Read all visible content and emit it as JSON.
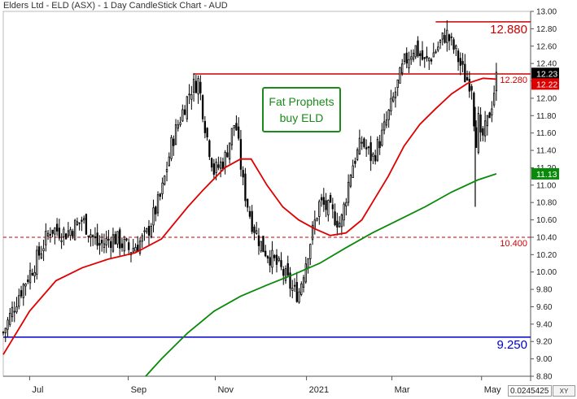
{
  "header": {
    "title": "Elders Ltd - ELD (ASX) - 1 Day CandleStick Chart - AUD"
  },
  "annotation": {
    "line1": "Fat Prophets",
    "line2": "buy ELD"
  },
  "crosshair": {
    "x_value": "0.0245425",
    "xy_label": "XY"
  },
  "colors": {
    "candle": "#000000",
    "ma_short": "#e00000",
    "ma_long": "#0a8a0a",
    "support": "#0000cc",
    "resistance": "#cc0000",
    "annotation": "#1a8a1a"
  },
  "chart_data": {
    "type": "candlestick",
    "title": "Elders Ltd - ELD (ASX) - 1 Day CandleStick Chart - AUD",
    "ylim": [
      8.8,
      13.0
    ],
    "y_ticks": [
      "13.00",
      "12.80",
      "12.60",
      "12.40",
      "12.20",
      "12.00",
      "11.80",
      "11.60",
      "11.40",
      "11.20",
      "11.00",
      "10.80",
      "10.60",
      "10.40",
      "10.20",
      "10.00",
      "9.80",
      "9.60",
      "9.40",
      "9.20",
      "9.00",
      "8.80"
    ],
    "x_ticks": [
      {
        "label": "Jul",
        "t": 0.05
      },
      {
        "label": "Sep",
        "t": 0.237
      },
      {
        "label": "Nov",
        "t": 0.402
      },
      {
        "label": "2021",
        "t": 0.575
      },
      {
        "label": "Mar",
        "t": 0.737
      },
      {
        "label": "May",
        "t": 0.907
      }
    ],
    "close_path": [
      [
        0,
        9.3
      ],
      [
        0.03,
        9.75
      ],
      [
        0.06,
        10.1
      ],
      [
        0.09,
        10.5
      ],
      [
        0.12,
        10.45
      ],
      [
        0.15,
        10.6
      ],
      [
        0.18,
        10.3
      ],
      [
        0.21,
        10.4
      ],
      [
        0.24,
        10.25
      ],
      [
        0.27,
        10.4
      ],
      [
        0.3,
        10.9
      ],
      [
        0.32,
        11.5
      ],
      [
        0.34,
        11.85
      ],
      [
        0.355,
        12.1
      ],
      [
        0.37,
        12.2
      ],
      [
        0.385,
        11.6
      ],
      [
        0.4,
        11.15
      ],
      [
        0.42,
        11.3
      ],
      [
        0.44,
        11.75
      ],
      [
        0.455,
        11.0
      ],
      [
        0.47,
        10.6
      ],
      [
        0.49,
        10.3
      ],
      [
        0.51,
        10.15
      ],
      [
        0.53,
        10.0
      ],
      [
        0.55,
        9.78
      ],
      [
        0.56,
        9.75
      ],
      [
        0.58,
        10.3
      ],
      [
        0.6,
        10.8
      ],
      [
        0.62,
        10.7
      ],
      [
        0.64,
        10.55
      ],
      [
        0.66,
        11.2
      ],
      [
        0.68,
        11.5
      ],
      [
        0.7,
        11.3
      ],
      [
        0.72,
        11.6
      ],
      [
        0.74,
        12.0
      ],
      [
        0.76,
        12.4
      ],
      [
        0.78,
        12.6
      ],
      [
        0.8,
        12.4
      ],
      [
        0.82,
        12.55
      ],
      [
        0.84,
        12.75
      ],
      [
        0.86,
        12.5
      ],
      [
        0.875,
        12.25
      ],
      [
        0.89,
        12.15
      ],
      [
        0.895,
        11.4
      ],
      [
        0.9,
        11.8
      ],
      [
        0.905,
        11.5
      ],
      [
        0.915,
        11.65
      ],
      [
        0.925,
        11.9
      ],
      [
        0.935,
        12.23
      ]
    ],
    "ma_short": {
      "name": "",
      "color": "#e00000",
      "points": [
        [
          0,
          9.05
        ],
        [
          0.05,
          9.55
        ],
        [
          0.1,
          9.9
        ],
        [
          0.15,
          10.05
        ],
        [
          0.2,
          10.15
        ],
        [
          0.25,
          10.22
        ],
        [
          0.3,
          10.38
        ],
        [
          0.35,
          10.75
        ],
        [
          0.38,
          10.95
        ],
        [
          0.42,
          11.2
        ],
        [
          0.45,
          11.3
        ],
        [
          0.47,
          11.3
        ],
        [
          0.5,
          11.0
        ],
        [
          0.53,
          10.75
        ],
        [
          0.56,
          10.6
        ],
        [
          0.59,
          10.5
        ],
        [
          0.62,
          10.42
        ],
        [
          0.65,
          10.45
        ],
        [
          0.68,
          10.6
        ],
        [
          0.7,
          10.8
        ],
        [
          0.73,
          11.1
        ],
        [
          0.76,
          11.45
        ],
        [
          0.79,
          11.7
        ],
        [
          0.82,
          11.88
        ],
        [
          0.85,
          12.05
        ],
        [
          0.88,
          12.17
        ],
        [
          0.91,
          12.23
        ],
        [
          0.935,
          12.22
        ]
      ]
    },
    "ma_long": {
      "name": "",
      "color": "#0a8a0a",
      "points": [
        [
          0.27,
          8.8
        ],
        [
          0.3,
          9.0
        ],
        [
          0.35,
          9.3
        ],
        [
          0.4,
          9.55
        ],
        [
          0.45,
          9.72
        ],
        [
          0.5,
          9.85
        ],
        [
          0.55,
          9.97
        ],
        [
          0.6,
          10.1
        ],
        [
          0.65,
          10.28
        ],
        [
          0.7,
          10.45
        ],
        [
          0.75,
          10.6
        ],
        [
          0.8,
          10.75
        ],
        [
          0.85,
          10.92
        ],
        [
          0.9,
          11.06
        ],
        [
          0.935,
          11.13
        ]
      ]
    },
    "levels": [
      {
        "value": 12.88,
        "label": "12.880",
        "color": "#cc0000",
        "style": "solid",
        "x_start": 0.82
      },
      {
        "value": 12.28,
        "label": "12.280",
        "color": "#cc0000",
        "style": "solid",
        "x_start": 0.36
      },
      {
        "value": 10.4,
        "label": "10.400",
        "color": "#cc0000",
        "style": "dashed",
        "x_start": 0.0
      },
      {
        "value": 9.25,
        "label": "9.250",
        "color": "#0000cc",
        "style": "solid",
        "x_start": 0.0
      }
    ],
    "badges": [
      {
        "value": 12.23,
        "label": "12.23",
        "bg": "#000000"
      },
      {
        "value": 12.22,
        "label": "12.22",
        "bg": "#dd0000"
      },
      {
        "value": 11.13,
        "label": "11.13",
        "bg": "#0a8a0a"
      }
    ],
    "spikes": [
      {
        "t": 0.895,
        "low": 10.75,
        "high": 11.9
      }
    ],
    "grid": false,
    "legend": "none"
  }
}
